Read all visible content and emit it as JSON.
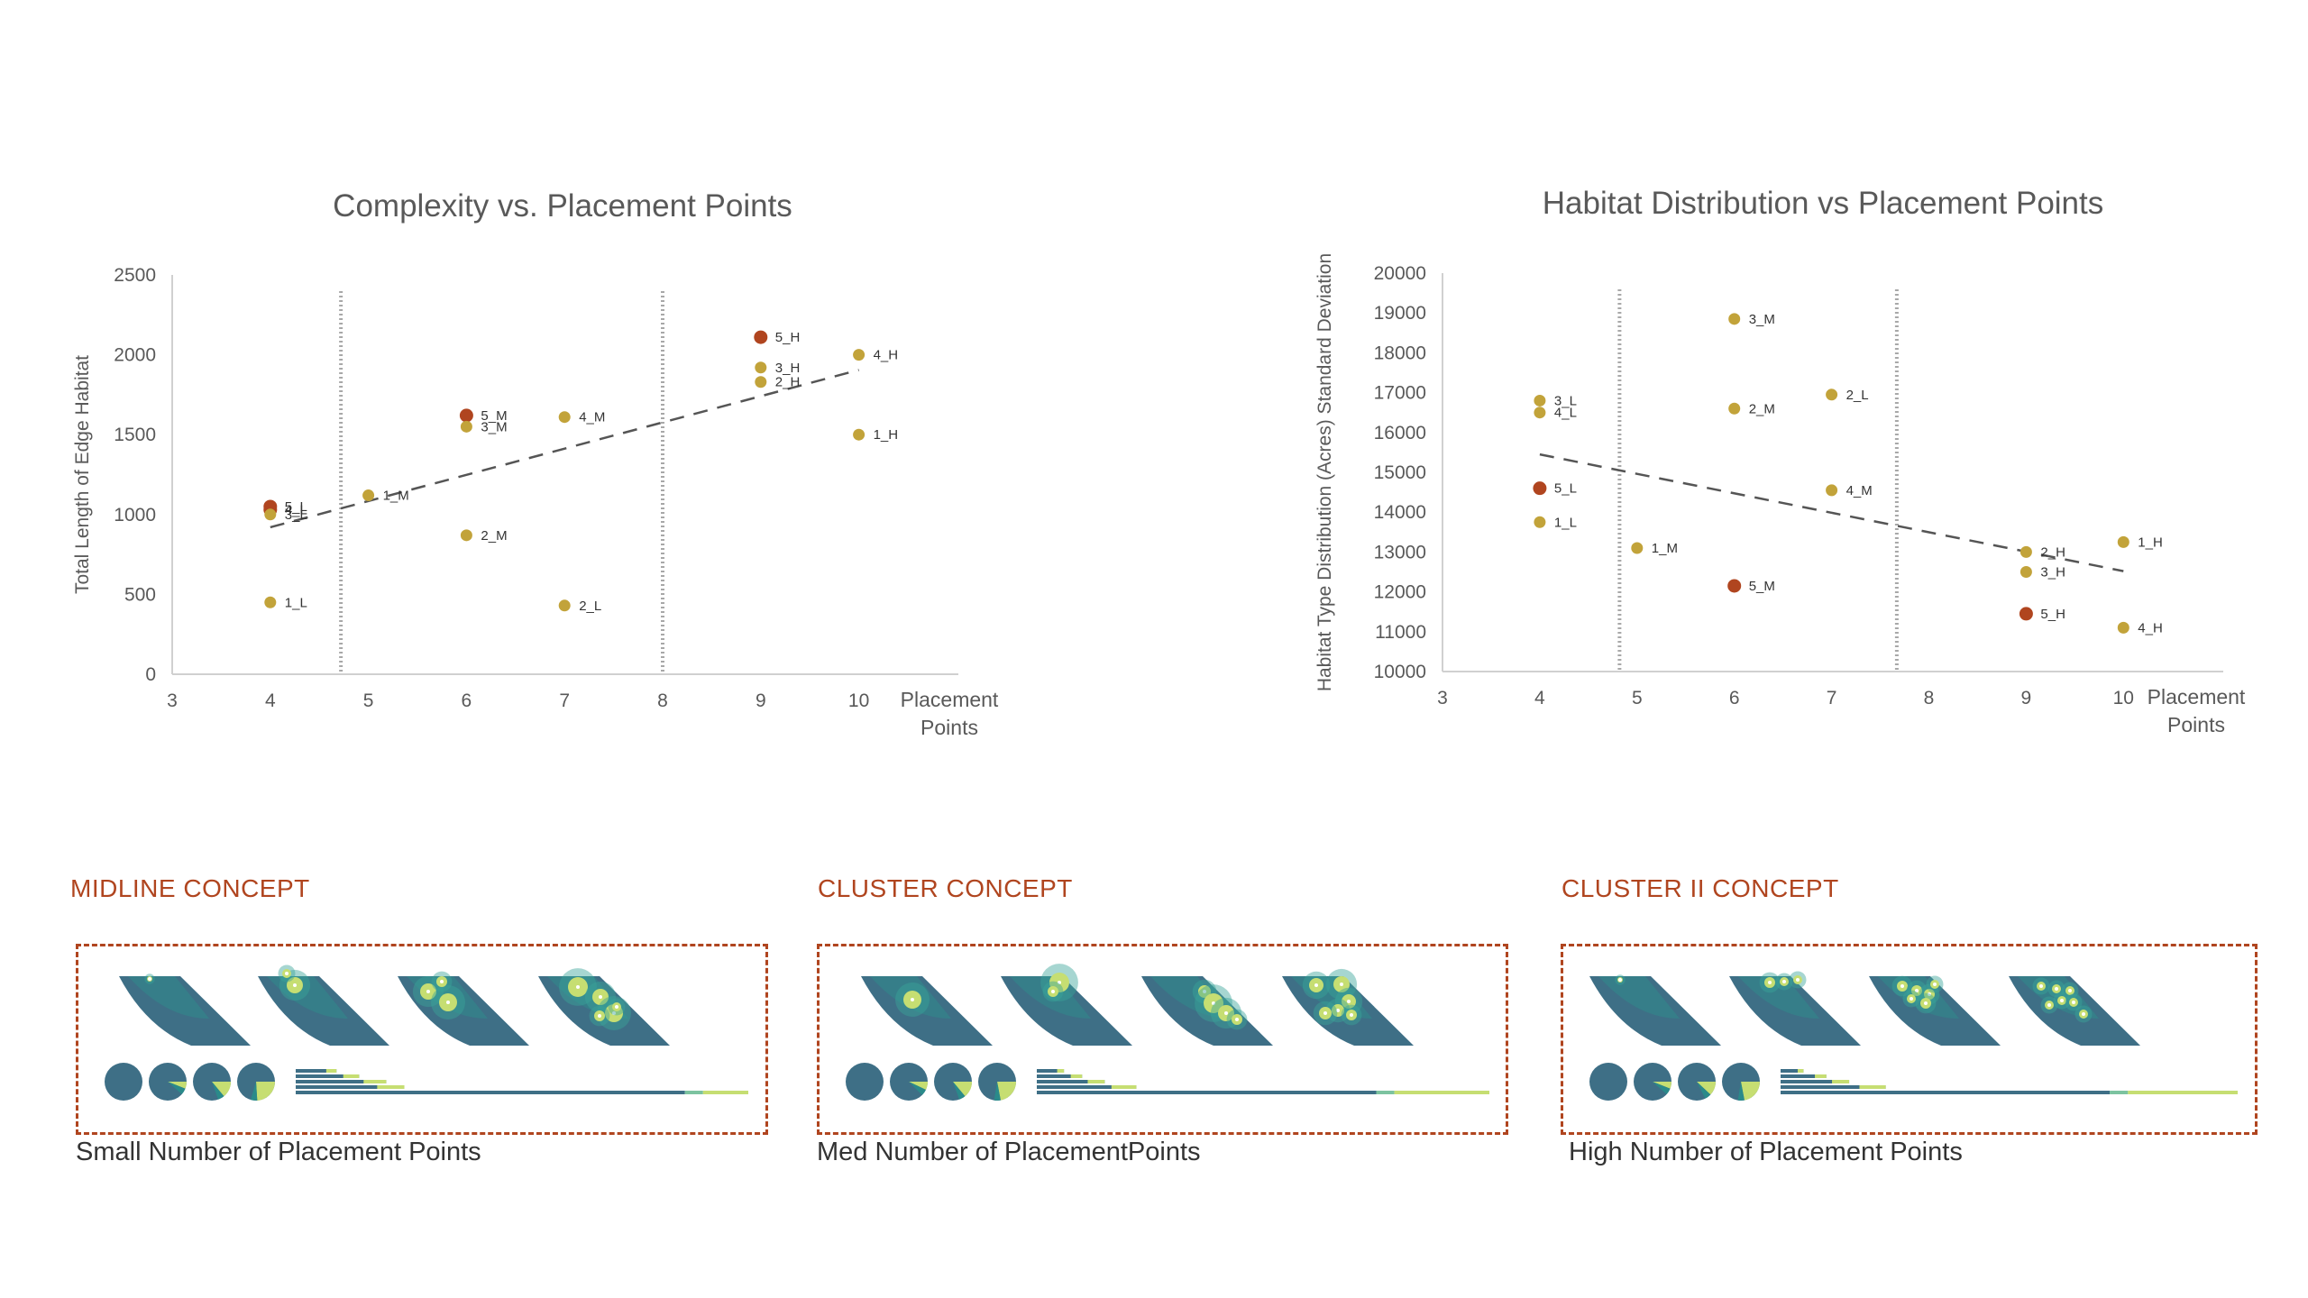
{
  "chart_data": [
    {
      "type": "scatter",
      "title": "Complexity vs. Placement Points",
      "xlabel": "Placement Points",
      "ylabel": "Total Length of Edge Habitat",
      "xlim": [
        3,
        11
      ],
      "ylim": [
        0,
        2500
      ],
      "x_ticks": [
        "3",
        "4",
        "5",
        "6",
        "7",
        "8",
        "9",
        "10"
      ],
      "y_ticks": [
        "0",
        "500",
        "1000",
        "1500",
        "2000",
        "2500"
      ],
      "dividers": [
        4.72,
        8
      ],
      "trendline": {
        "x1": 4,
        "y1": 920,
        "x2": 10,
        "y2": 1905
      },
      "points": [
        {
          "label": "1_L",
          "x": 4,
          "y": 450,
          "color": "#c2a33a"
        },
        {
          "label": "5_L",
          "x": 4,
          "y": 1050,
          "color": "#b0451f"
        },
        {
          "label": "4_L",
          "x": 4,
          "y": 1030,
          "color": "#b0451f"
        },
        {
          "label": "3_L",
          "x": 4,
          "y": 1000,
          "color": "#c2a33a"
        },
        {
          "label": "1_M",
          "x": 5,
          "y": 1120,
          "color": "#c2a33a"
        },
        {
          "label": "5_M",
          "x": 6,
          "y": 1620,
          "color": "#b0451f"
        },
        {
          "label": "3_M",
          "x": 6,
          "y": 1550,
          "color": "#c2a33a"
        },
        {
          "label": "2_M",
          "x": 6,
          "y": 870,
          "color": "#c2a33a"
        },
        {
          "label": "4_M",
          "x": 7,
          "y": 1610,
          "color": "#c2a33a"
        },
        {
          "label": "2_L",
          "x": 7,
          "y": 430,
          "color": "#c2a33a"
        },
        {
          "label": "5_H",
          "x": 9,
          "y": 2110,
          "color": "#b0451f"
        },
        {
          "label": "3_H",
          "x": 9,
          "y": 1920,
          "color": "#c2a33a"
        },
        {
          "label": "2_H",
          "x": 9,
          "y": 1830,
          "color": "#c2a33a"
        },
        {
          "label": "4_H",
          "x": 10,
          "y": 2000,
          "color": "#c2a33a"
        },
        {
          "label": "1_H",
          "x": 10,
          "y": 1500,
          "color": "#c2a33a"
        }
      ]
    },
    {
      "type": "scatter",
      "title": "Habitat Distribution  vs Placement Points",
      "xlabel": "Placement Points",
      "ylabel": "Habitat Type Distribution (Acres) Standard Deviation",
      "xlim": [
        3,
        11
      ],
      "ylim": [
        10000,
        20000
      ],
      "x_ticks": [
        "3",
        "4",
        "5",
        "6",
        "7",
        "8",
        "9",
        "10"
      ],
      "y_ticks": [
        "10000",
        "11000",
        "12000",
        "13000",
        "14000",
        "15000",
        "16000",
        "17000",
        "18000",
        "19000",
        "20000"
      ],
      "dividers": [
        4.82,
        7.67
      ],
      "trendline": {
        "x1": 4,
        "y1": 15450,
        "x2": 10,
        "y2": 12520
      },
      "points": [
        {
          "label": "3_L",
          "x": 4,
          "y": 16800,
          "color": "#c2a33a"
        },
        {
          "label": "4_L",
          "x": 4,
          "y": 16500,
          "color": "#c2a33a"
        },
        {
          "label": "5_L",
          "x": 4,
          "y": 14600,
          "color": "#b0451f"
        },
        {
          "label": "1_L",
          "x": 4,
          "y": 13750,
          "color": "#c2a33a"
        },
        {
          "label": "1_M",
          "x": 5,
          "y": 13100,
          "color": "#c2a33a"
        },
        {
          "label": "3_M",
          "x": 6,
          "y": 18850,
          "color": "#c2a33a"
        },
        {
          "label": "2_M",
          "x": 6,
          "y": 16600,
          "color": "#c2a33a"
        },
        {
          "label": "5_M",
          "x": 6,
          "y": 12150,
          "color": "#b0451f"
        },
        {
          "label": "2_L",
          "x": 7,
          "y": 16950,
          "color": "#c2a33a"
        },
        {
          "label": "4_M",
          "x": 7,
          "y": 14550,
          "color": "#c2a33a"
        },
        {
          "label": "2_H",
          "x": 9,
          "y": 13000,
          "color": "#c2a33a"
        },
        {
          "label": "3_H",
          "x": 9,
          "y": 12500,
          "color": "#c2a33a"
        },
        {
          "label": "5_H",
          "x": 9,
          "y": 11450,
          "color": "#b0451f"
        },
        {
          "label": "1_H",
          "x": 10,
          "y": 13250,
          "color": "#c2a33a"
        },
        {
          "label": "4_H",
          "x": 10,
          "y": 11100,
          "color": "#c2a33a"
        }
      ]
    }
  ],
  "concepts": [
    {
      "title": "MIDLINE CONCEPT",
      "caption": "Small Number of  Placement Points",
      "pie_fractions": [
        0.0,
        0.06,
        0.14,
        0.24
      ],
      "bars": [
        0.09,
        0.14,
        0.2,
        0.24,
        0.86
      ]
    },
    {
      "title": "CLUSTER CONCEPT",
      "caption": "Med Number of PlacementPoints",
      "pie_fractions": [
        0.0,
        0.07,
        0.14,
        0.22
      ],
      "bars": [
        0.06,
        0.1,
        0.15,
        0.22,
        0.75
      ]
    },
    {
      "title": "CLUSTER II CONCEPT",
      "caption": "High Number of Placement Points",
      "pie_fractions": [
        0.0,
        0.06,
        0.12,
        0.22
      ],
      "bars": [
        0.05,
        0.1,
        0.15,
        0.23,
        0.72
      ]
    }
  ],
  "colors": {
    "accent": "#b0451f",
    "point_gold": "#c2a33a",
    "point_red": "#b0451f",
    "teal_dark": "#3e6f86",
    "teal": "#2a8a8a",
    "lime": "#c6de72"
  }
}
